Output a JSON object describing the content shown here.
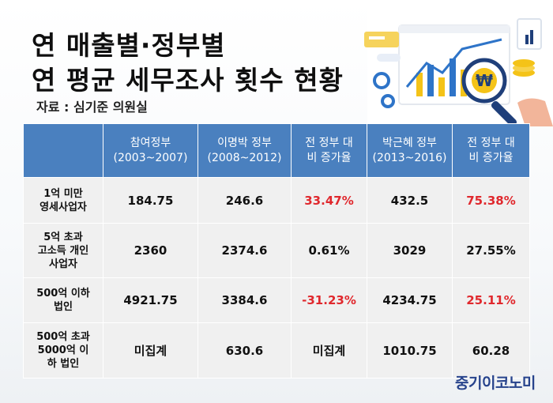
{
  "title": {
    "line1": "연 매출별·정부별",
    "line2": "연 평균 세무조사 횟수 현황"
  },
  "source": "자료 : 심기준 의원실",
  "table": {
    "headers": [
      [
        "",
        ""
      ],
      [
        "참여정부",
        "(2003~2007)"
      ],
      [
        "이명박 정부",
        "(2008~2012)"
      ],
      [
        "전 정부 대",
        "비 증가율"
      ],
      [
        "박근혜 정부",
        "(2013~2016)"
      ],
      [
        "전 정부 대",
        "비 증가율"
      ]
    ],
    "rows": [
      {
        "label": [
          "1억 미만",
          "영세사업자"
        ],
        "cells": [
          "184.75",
          "246.6",
          "33.47%",
          "432.5",
          "75.38%"
        ],
        "red": [
          2,
          4
        ]
      },
      {
        "label": [
          "5억 초과",
          "고소득 개인",
          "사업자"
        ],
        "cells": [
          "2360",
          "2374.6",
          "0.61%",
          "3029",
          "27.55%"
        ],
        "red": []
      },
      {
        "label": [
          "500억 이하",
          "법인"
        ],
        "cells": [
          "4921.75",
          "3384.6",
          "-31.23%",
          "4234.75",
          "25.11%"
        ],
        "red": [
          2,
          4
        ]
      },
      {
        "label": [
          "500억 초과",
          "5000억 이",
          "하 법인"
        ],
        "cells": [
          "미집계",
          "630.6",
          "미집계",
          "1010.75",
          "60.28"
        ],
        "red": []
      }
    ]
  },
  "logo": "중기이코노미",
  "colors": {
    "header_bg": "#4a80bf",
    "cell_bg": "#f0f0f0",
    "highlight": "#e0282d",
    "logo": "#27438c"
  },
  "illustration": {
    "icon": "analytics-magnifier-won-icon",
    "magnifier_glyph": "₩"
  }
}
